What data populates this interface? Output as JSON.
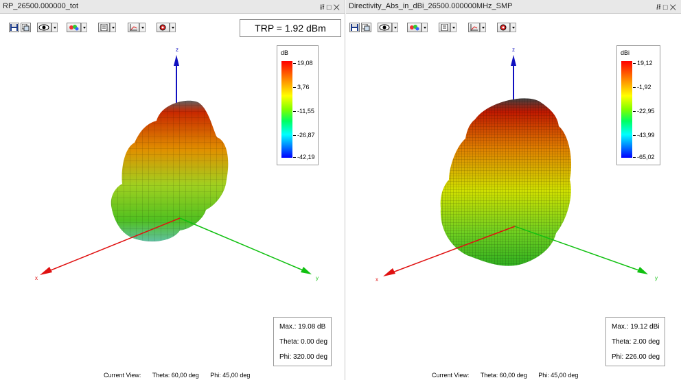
{
  "left_panel": {
    "title": "RP_26500.000000_tot",
    "window_buttons": "    ",
    "trp": "TRP = 1.92 dBm",
    "legend": {
      "unit": "dB",
      "ticks": [
        "19,08",
        "3,76",
        "-11,55",
        "-26,87",
        "-42,19"
      ]
    },
    "info": {
      "max": "Max.: 19.08 dB",
      "theta": "Theta: 0.00 deg",
      "phi": "Phi: 320.00 deg"
    },
    "current_view": {
      "label": "Current View:",
      "theta": "Theta: 60,00 deg",
      "phi": "Phi: 45,00 deg"
    },
    "axes": {
      "z": "z",
      "x": "x",
      "y": "y"
    }
  },
  "right_panel": {
    "title": "Directivity_Abs_in_dBi_26500.000000MHz_SMP",
    "window_buttons": "    ",
    "legend": {
      "unit": "dBi",
      "ticks": [
        "19,12",
        "-1,92",
        "-22,95",
        "-43,99",
        "-65,02"
      ]
    },
    "info": {
      "max": "Max.: 19.12 dBi",
      "theta": "Theta: 2.00 deg",
      "phi": "Phi: 226.00 deg"
    },
    "current_view": {
      "label": "Current View:",
      "theta": "Theta: 60,00 deg",
      "phi": "Phi: 45,00 deg"
    },
    "axes": {
      "z": "z",
      "x": "x",
      "y": "y"
    }
  },
  "toolbar_icons": [
    "save-icon",
    "copy-icon",
    "view-eye-icon",
    "color-palette-icon",
    "page-icon",
    "scale-icon",
    "settings-gear-icon"
  ],
  "colors": {
    "z_axis": "#1010c0",
    "x_axis": "#e01010",
    "y_axis": "#10c010",
    "window_bg": "#ffffff",
    "titlebar_bg": "#e8e8e8"
  }
}
